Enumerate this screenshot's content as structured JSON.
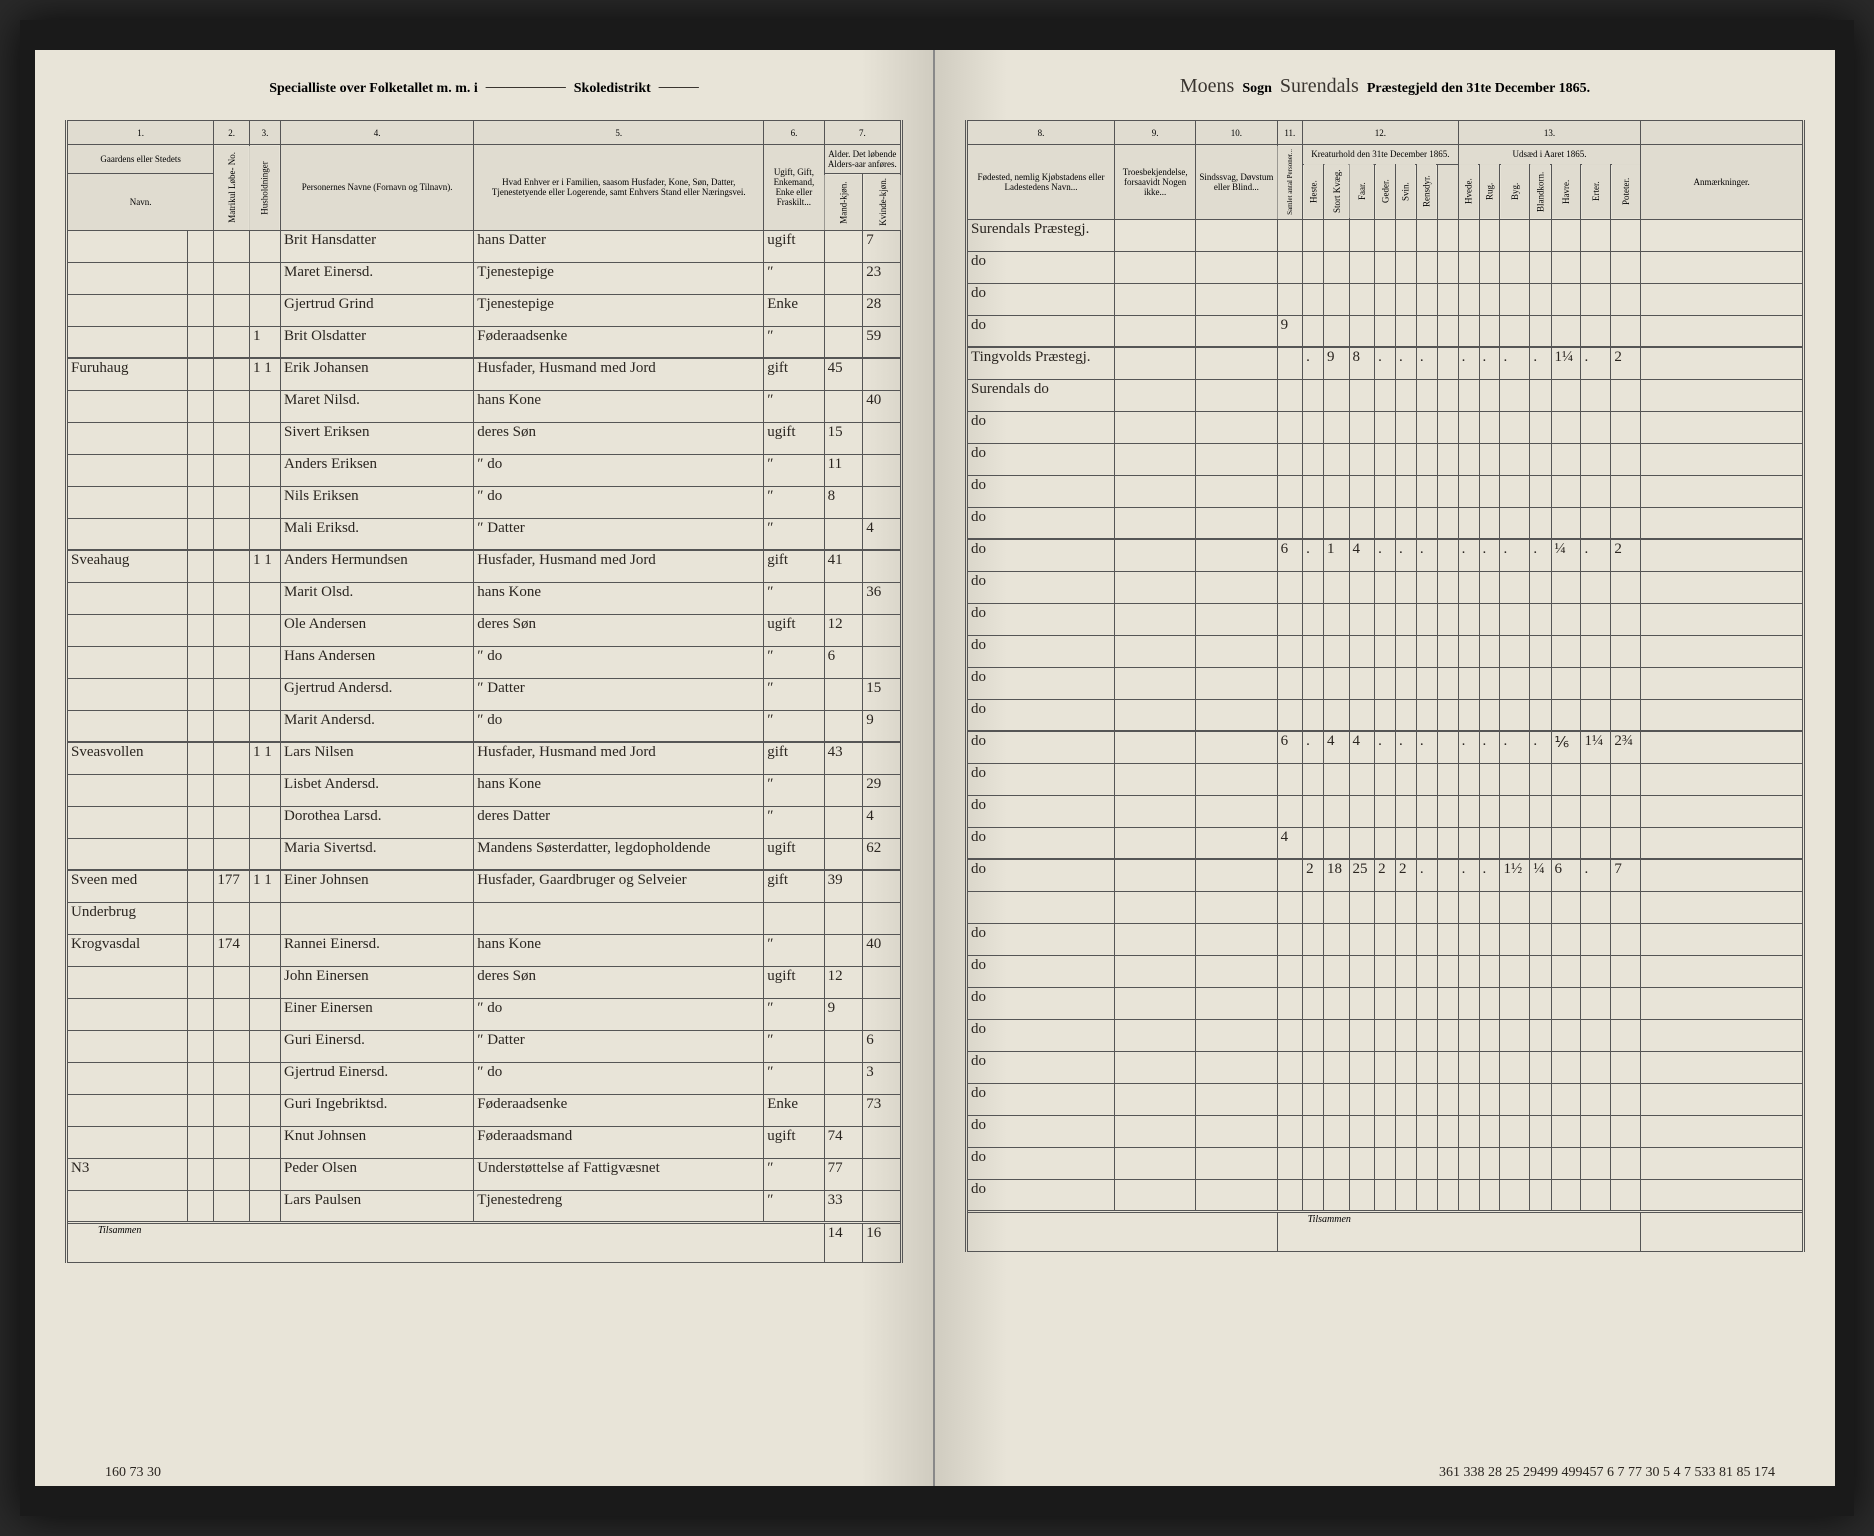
{
  "header": {
    "left_printed_1": "Specialliste over Folketallet m. m. i",
    "left_printed_2": "Skoledistrikt",
    "right_script_1": "Moens",
    "right_printed_1": "Sogn",
    "right_script_2": "Surendals",
    "right_printed_2": "Præstegjeld den 31te December 1865."
  },
  "colNums": {
    "c1": "1.",
    "c2": "2.",
    "c3": "3.",
    "c4": "4.",
    "c5": "5.",
    "c6": "6.",
    "c7": "7.",
    "c8": "8.",
    "c9": "9.",
    "c10": "10.",
    "c11": "11.",
    "c12": "12.",
    "c13": "13."
  },
  "colHeaders": {
    "gaard": "Gaardens eller Stedets",
    "navn": "Navn.",
    "matr": "Matrikul Løbe- No.",
    "hush": "Husholdninger",
    "person": "Personernes Navne (Fornavn og Tilnavn).",
    "stand": "Hvad Enhver er i Familien, saasom Husfader, Kone, Søn, Datter, Tjenestetyende eller Logerende, samt Enhvers Stand eller Næringsvei.",
    "civil": "Ugift, Gift, Enkemand, Enke eller Fraskilt...",
    "alder_h": "Alder. Det løbende Alders-aar anføres.",
    "mand": "Mand-kjøn.",
    "kvinde": "Kvinde-kjøn.",
    "fode": "Fødested, nemlig Kjøbstadens eller Ladestedens Navn...",
    "tro": "Troesbekjendelse, forsaavidt Nogen ikke...",
    "sind": "Sindssvag, Døvstum eller Blind...",
    "kreatur_h": "Kreaturhold den 31te December 1865.",
    "udsad_h": "Udsæd i Aaret 1865.",
    "anm": "Anmærkninger.",
    "k1": "Heste.",
    "k2": "Stort Kvæg.",
    "k3": "Faar.",
    "k4": "Geder.",
    "k5": "Svin.",
    "k6": "Rensdyr.",
    "u1": "Hvede.",
    "u2": "Rug.",
    "u3": "Byg.",
    "u4": "Blandkorn.",
    "u5": "Havre.",
    "u6": "Erter.",
    "u7": "Poteter."
  },
  "rows": [
    {
      "g": "",
      "m": "",
      "h": "",
      "name": "Brit Hansdatter",
      "pos": "hans Datter",
      "civ": "ugift",
      "am": "",
      "ak": "7",
      "fode": "Surendals Præstegj.",
      "col11": ""
    },
    {
      "g": "",
      "m": "",
      "h": "",
      "name": "Maret Einersd.",
      "pos": "Tjenestepige",
      "civ": "″",
      "am": "",
      "ak": "23",
      "fode": "do",
      "col11": ""
    },
    {
      "g": "",
      "m": "",
      "h": "",
      "name": "Gjertrud Grind",
      "pos": "Tjenestepige",
      "civ": "Enke",
      "am": "",
      "ak": "28",
      "fode": "do",
      "col11": ""
    },
    {
      "g": "",
      "m": "",
      "h": "1",
      "name": "Brit Olsdatter",
      "pos": "Føderaadsenke",
      "civ": "″",
      "am": "",
      "ak": "59",
      "fode": "do",
      "col11": "9"
    },
    {
      "g": "Furuhaug",
      "m": "",
      "h": "1 1",
      "name": "Erik Johansen",
      "pos": "Husfader, Husmand med Jord",
      "civ": "gift",
      "am": "45",
      "ak": "",
      "fode": "Tingvolds Præstegj.",
      "col11": "",
      "k": [
        ".",
        "9",
        "8",
        ".",
        ".",
        "."
      ],
      "u": [
        ".",
        ".",
        ".",
        ".",
        "1¼",
        ".",
        "2"
      ],
      "rule": true
    },
    {
      "g": "",
      "m": "",
      "h": "",
      "name": "Maret Nilsd.",
      "pos": "hans Kone",
      "civ": "″",
      "am": "",
      "ak": "40",
      "fode": "Surendals do",
      "col11": ""
    },
    {
      "g": "",
      "m": "",
      "h": "",
      "name": "Sivert Eriksen",
      "pos": "deres Søn",
      "civ": "ugift",
      "am": "15",
      "ak": "",
      "fode": "do",
      "col11": ""
    },
    {
      "g": "",
      "m": "",
      "h": "",
      "name": "Anders Eriksen",
      "pos": "″  do",
      "civ": "″",
      "am": "11",
      "ak": "",
      "fode": "do",
      "col11": ""
    },
    {
      "g": "",
      "m": "",
      "h": "",
      "name": "Nils Eriksen",
      "pos": "″  do",
      "civ": "″",
      "am": "8",
      "ak": "",
      "fode": "do",
      "col11": ""
    },
    {
      "g": "",
      "m": "",
      "h": "",
      "name": "Mali Eriksd.",
      "pos": "″  Datter",
      "civ": "″",
      "am": "",
      "ak": "4",
      "fode": "do",
      "col11": ""
    },
    {
      "g": "Sveahaug",
      "m": "",
      "h": "1 1",
      "name": "Anders Hermundsen",
      "pos": "Husfader, Husmand med Jord",
      "civ": "gift",
      "am": "41",
      "ak": "",
      "fode": "do",
      "col11": "6",
      "k": [
        ".",
        "1",
        "4",
        ".",
        ".",
        "."
      ],
      "u": [
        ".",
        ".",
        ".",
        ".",
        "¼",
        ".",
        "2"
      ],
      "rule": true
    },
    {
      "g": "",
      "m": "",
      "h": "",
      "name": "Marit Olsd.",
      "pos": "hans Kone",
      "civ": "″",
      "am": "",
      "ak": "36",
      "fode": "do",
      "col11": ""
    },
    {
      "g": "",
      "m": "",
      "h": "",
      "name": "Ole Andersen",
      "pos": "deres Søn",
      "civ": "ugift",
      "am": "12",
      "ak": "",
      "fode": "do",
      "col11": ""
    },
    {
      "g": "",
      "m": "",
      "h": "",
      "name": "Hans Andersen",
      "pos": "″  do",
      "civ": "″",
      "am": "6",
      "ak": "",
      "fode": "do",
      "col11": ""
    },
    {
      "g": "",
      "m": "",
      "h": "",
      "name": "Gjertrud Andersd.",
      "pos": "″  Datter",
      "civ": "″",
      "am": "",
      "ak": "15",
      "fode": "do",
      "col11": ""
    },
    {
      "g": "",
      "m": "",
      "h": "",
      "name": "Marit Andersd.",
      "pos": "″  do",
      "civ": "″",
      "am": "",
      "ak": "9",
      "fode": "do",
      "col11": ""
    },
    {
      "g": "Sveasvollen",
      "m": "",
      "h": "1 1",
      "name": "Lars Nilsen",
      "pos": "Husfader, Husmand med Jord",
      "civ": "gift",
      "am": "43",
      "ak": "",
      "fode": "do",
      "col11": "6",
      "k": [
        ".",
        "4",
        "4",
        ".",
        ".",
        "."
      ],
      "u": [
        ".",
        ".",
        ".",
        ".",
        "⅙",
        "1¼",
        "2¾"
      ],
      "rule": true
    },
    {
      "g": "",
      "m": "",
      "h": "",
      "name": "Lisbet Andersd.",
      "pos": "hans Kone",
      "civ": "″",
      "am": "",
      "ak": "29",
      "fode": "do",
      "col11": ""
    },
    {
      "g": "",
      "m": "",
      "h": "",
      "name": "Dorothea Larsd.",
      "pos": "deres Datter",
      "civ": "″",
      "am": "",
      "ak": "4",
      "fode": "do",
      "col11": ""
    },
    {
      "g": "",
      "m": "",
      "h": "",
      "name": "Maria Sivertsd.",
      "pos": "Mandens Søsterdatter, legdopholdende",
      "civ": "ugift",
      "am": "",
      "ak": "62",
      "fode": "do",
      "col11": "4"
    },
    {
      "g": "Sveen med",
      "m": "177",
      "h": "1 1",
      "name": "Einer Johnsen",
      "pos": "Husfader, Gaardbruger og Selveier",
      "civ": "gift",
      "am": "39",
      "ak": "",
      "fode": "do",
      "col11": "",
      "k": [
        "2",
        "18",
        "25",
        "2",
        "2",
        "."
      ],
      "u": [
        ".",
        ".",
        "1½",
        "¼",
        "6",
        ".",
        "7"
      ],
      "rule": true
    },
    {
      "g": "Underbrug",
      "m": "",
      "h": "",
      "name": "",
      "pos": "",
      "civ": "",
      "am": "",
      "ak": "",
      "fode": "",
      "col11": ""
    },
    {
      "g": "Krogvasdal",
      "m": "174",
      "h": "",
      "name": "Rannei Einersd.",
      "pos": "hans Kone",
      "civ": "″",
      "am": "",
      "ak": "40",
      "fode": "do",
      "col11": ""
    },
    {
      "g": "",
      "m": "",
      "h": "",
      "name": "John Einersen",
      "pos": "deres Søn",
      "civ": "ugift",
      "am": "12",
      "ak": "",
      "fode": "do",
      "col11": ""
    },
    {
      "g": "",
      "m": "",
      "h": "",
      "name": "Einer Einersen",
      "pos": "″  do",
      "civ": "″",
      "am": "9",
      "ak": "",
      "fode": "do",
      "col11": ""
    },
    {
      "g": "",
      "m": "",
      "h": "",
      "name": "Guri Einersd.",
      "pos": "″  Datter",
      "civ": "″",
      "am": "",
      "ak": "6",
      "fode": "do",
      "col11": ""
    },
    {
      "g": "",
      "m": "",
      "h": "",
      "name": "Gjertrud Einersd.",
      "pos": "″  do",
      "civ": "″",
      "am": "",
      "ak": "3",
      "fode": "do",
      "col11": ""
    },
    {
      "g": "",
      "m": "",
      "h": "",
      "name": "Guri Ingebriktsd.",
      "pos": "Føderaadsenke",
      "civ": "Enke",
      "am": "",
      "ak": "73",
      "fode": "do",
      "col11": ""
    },
    {
      "g": "",
      "m": "",
      "h": "",
      "name": "Knut Johnsen",
      "pos": "Føderaadsmand",
      "civ": "ugift",
      "am": "74",
      "ak": "",
      "fode": "do",
      "col11": ""
    },
    {
      "g": "N3",
      "m": "",
      "h": "",
      "name": "Peder Olsen",
      "pos": "Understøttelse af Fattigvæsnet",
      "civ": "″",
      "am": "77",
      "ak": "",
      "fode": "do",
      "col11": ""
    },
    {
      "g": "",
      "m": "",
      "h": "",
      "name": "Lars Paulsen",
      "pos": "Tjenestedreng",
      "civ": "″",
      "am": "33",
      "ak": "",
      "fode": "do",
      "col11": ""
    }
  ],
  "footer": {
    "tilsammen": "Tilsammen",
    "left_m": "14",
    "left_k": "16",
    "left_tallies": "160  73  30",
    "right_tallies": "361 338  28 25  29499  499457  6 7  77 30  5 4 7  533  81 85  174"
  }
}
